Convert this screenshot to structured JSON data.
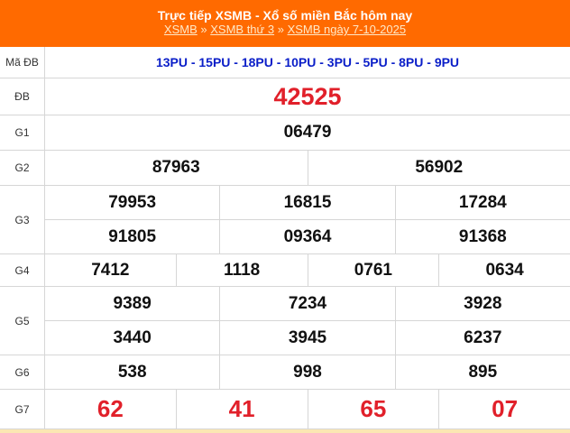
{
  "header": {
    "title": "Trực tiếp XSMB - Xổ số miền Bắc hôm nay",
    "breadcrumb": [
      "XSMB",
      "XSMB thứ 3",
      "XSMB ngày 7-10-2025"
    ],
    "separator": "»"
  },
  "colors": {
    "header_bg": "#ff6a00",
    "special": "#e1202a",
    "code": "#0a1ec8"
  },
  "results": {
    "madb": {
      "label": "Mã ĐB",
      "value": "13PU - 15PU - 18PU - 10PU - 3PU - 5PU - 8PU - 9PU"
    },
    "db": {
      "label": "ĐB",
      "values": [
        "42525"
      ]
    },
    "g1": {
      "label": "G1",
      "values": [
        "06479"
      ]
    },
    "g2": {
      "label": "G2",
      "values": [
        "87963",
        "56902"
      ]
    },
    "g3": {
      "label": "G3",
      "values": [
        "79953",
        "16815",
        "17284",
        "91805",
        "09364",
        "91368"
      ]
    },
    "g4": {
      "label": "G4",
      "values": [
        "7412",
        "1118",
        "0761",
        "0634"
      ]
    },
    "g5": {
      "label": "G5",
      "values": [
        "9389",
        "7234",
        "3928",
        "3440",
        "3945",
        "6237"
      ]
    },
    "g6": {
      "label": "G6",
      "values": [
        "538",
        "998",
        "895"
      ]
    },
    "g7": {
      "label": "G7",
      "values": [
        "62",
        "41",
        "65",
        "07"
      ]
    }
  }
}
